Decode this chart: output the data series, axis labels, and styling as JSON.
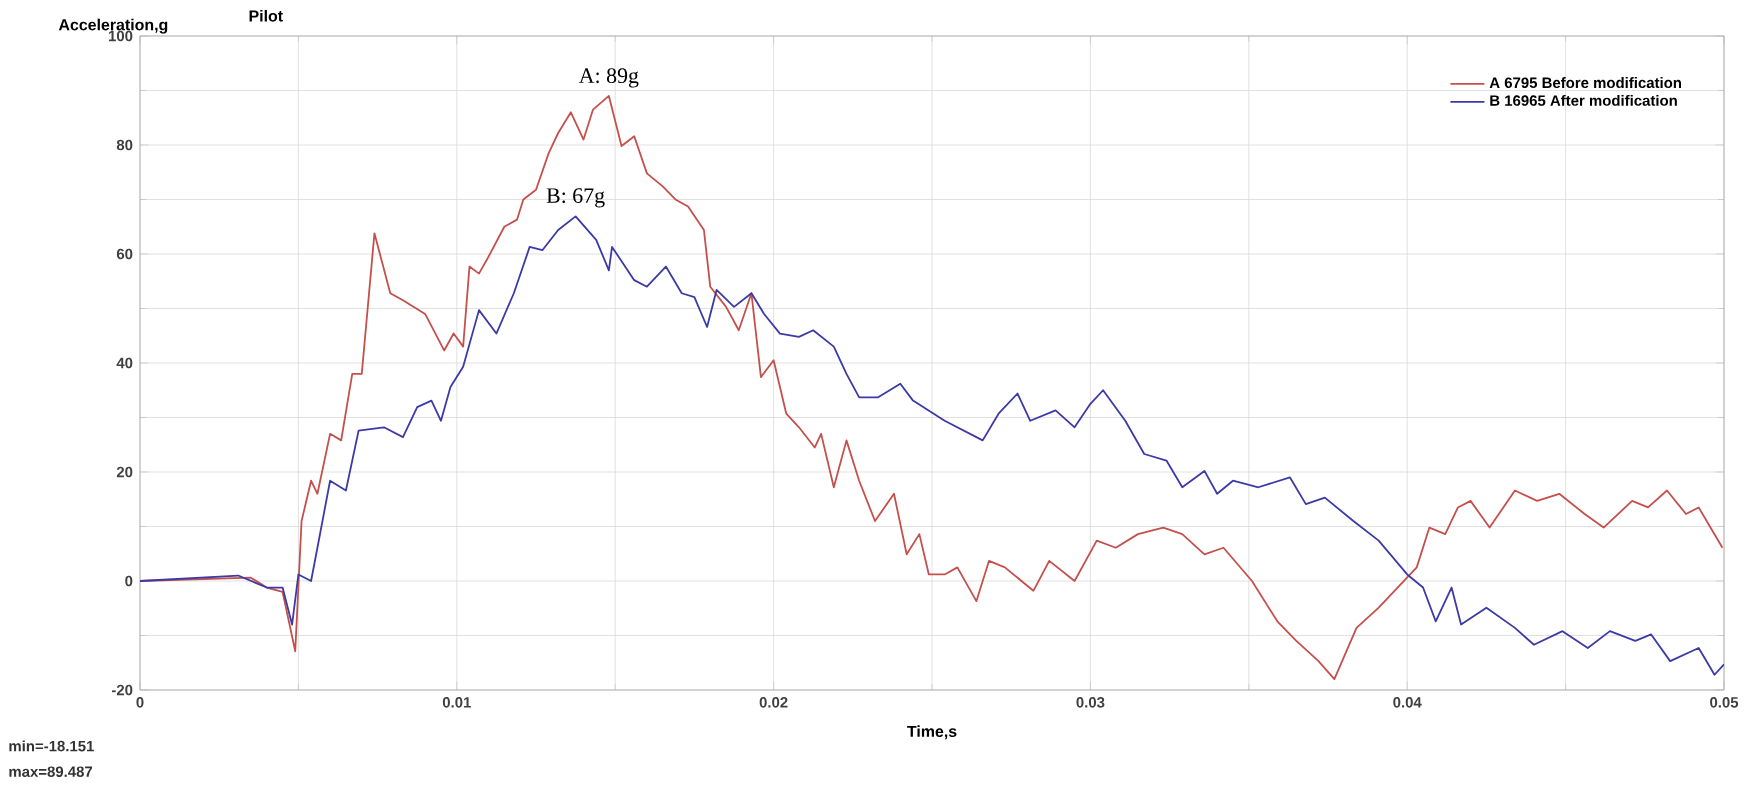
{
  "chart_data": {
    "type": "line",
    "title": "Pilot",
    "ylabel": "Acceleration,g",
    "xlabel": "Time,s",
    "xlim": [
      0,
      0.05
    ],
    "xticks": [
      0,
      0.01,
      0.02,
      0.03,
      0.04,
      0.05
    ],
    "ylim": [
      -20,
      100
    ],
    "yticks": [
      -20,
      0,
      20,
      40,
      60,
      80,
      100
    ],
    "grid": true,
    "legend": "top right",
    "marker": "none",
    "line_style": "solid",
    "annotations": [
      {
        "text": "A: 89g",
        "x": 0.0148,
        "y": 89
      },
      {
        "text": "B: 67g",
        "x": 0.01375,
        "y": 67
      },
      "min=-18.151",
      "max=89.487"
    ],
    "series": [
      {
        "name": "A 6795 Before modification",
        "color": "#c4504c",
        "x": [
          0,
          0.0035,
          0.004,
          0.0045,
          0.0049,
          0.0051,
          0.0054,
          0.0056,
          0.006,
          0.00635,
          0.0067,
          0.007,
          0.0074,
          0.0079,
          0.0083,
          0.009,
          0.0096,
          0.0099,
          0.0102,
          0.0104,
          0.0107,
          0.011,
          0.0115,
          0.0119,
          0.0121,
          0.0125,
          0.0129,
          0.0132,
          0.0136,
          0.014,
          0.0143,
          0.0148,
          0.0152,
          0.0156,
          0.016,
          0.0165,
          0.0169,
          0.0173,
          0.0178,
          0.018,
          0.0185,
          0.0189,
          0.0193,
          0.0196,
          0.02,
          0.0204,
          0.0208,
          0.0213,
          0.0215,
          0.0219,
          0.0223,
          0.0227,
          0.0232,
          0.0238,
          0.0242,
          0.0246,
          0.0249,
          0.0254,
          0.0258,
          0.0264,
          0.0268,
          0.0273,
          0.0282,
          0.0287,
          0.0295,
          0.0302,
          0.0308,
          0.0315,
          0.0323,
          0.0329,
          0.0336,
          0.0342,
          0.0351,
          0.0359,
          0.0365,
          0.0372,
          0.0377,
          0.0384,
          0.0391,
          0.0397,
          0.0403,
          0.0407,
          0.0412,
          0.0416,
          0.042,
          0.0426,
          0.0434,
          0.0441,
          0.0448,
          0.0456,
          0.0462,
          0.0471,
          0.0476,
          0.0482,
          0.0488,
          0.0492,
          0.04995
        ],
        "values": [
          0,
          0.6,
          -1.2,
          -2,
          -12.9,
          11,
          18.4,
          16,
          27,
          25.8,
          38,
          38,
          63.8,
          52.8,
          51.5,
          49,
          42.3,
          45.4,
          43,
          57.7,
          56.4,
          59.5,
          65,
          66.3,
          70,
          71.8,
          78.5,
          82.2,
          86,
          81,
          86.5,
          89,
          79.8,
          81.6,
          74.8,
          72.4,
          70,
          68.7,
          64.4,
          54,
          50.3,
          46,
          52.8,
          37.4,
          40.5,
          30.7,
          28.2,
          24.5,
          27,
          17.2,
          25.8,
          18.4,
          11,
          16,
          4.9,
          8.6,
          1.2,
          1.2,
          2.5,
          -3.7,
          3.7,
          2.5,
          -1.8,
          3.7,
          0,
          7.4,
          6.1,
          8.6,
          9.8,
          8.6,
          4.9,
          6.1,
          0,
          -7.4,
          -11,
          -14.7,
          -18,
          -8.6,
          -4.9,
          -1.2,
          2.5,
          9.8,
          8.6,
          13.5,
          14.7,
          9.8,
          16.6,
          14.7,
          16,
          12.3,
          9.8,
          14.7,
          13.5,
          16.6,
          12.3,
          13.5,
          6.1
        ]
      },
      {
        "name": "B 16965 After modification",
        "color": "#3b3aa6",
        "x": [
          0,
          0.0031,
          0.004,
          0.0045,
          0.0048,
          0.005,
          0.0054,
          0.0056,
          0.006,
          0.0065,
          0.0069,
          0.0077,
          0.0083,
          0.00875,
          0.0092,
          0.0095,
          0.0098,
          0.0102,
          0.0107,
          0.01125,
          0.0118,
          0.0123,
          0.0127,
          0.0132,
          0.01375,
          0.0144,
          0.0148,
          0.0149,
          0.0156,
          0.016,
          0.0166,
          0.0171,
          0.0175,
          0.0179,
          0.0182,
          0.01875,
          0.0193,
          0.0197,
          0.0202,
          0.0208,
          0.02125,
          0.0219,
          0.0223,
          0.0227,
          0.0233,
          0.024,
          0.0244,
          0.0254,
          0.0266,
          0.0271,
          0.0277,
          0.0281,
          0.0289,
          0.0295,
          0.03,
          0.0304,
          0.0311,
          0.0317,
          0.0324,
          0.0329,
          0.0336,
          0.034,
          0.0345,
          0.0353,
          0.0363,
          0.0368,
          0.0374,
          0.0383,
          0.0391,
          0.04,
          0.0405,
          0.0409,
          0.0414,
          0.0417,
          0.0425,
          0.0434,
          0.044,
          0.0449,
          0.0457,
          0.0464,
          0.0472,
          0.0477,
          0.0483,
          0.0492,
          0.0497,
          0.05
        ],
        "values": [
          0,
          1,
          -1.2,
          -1.2,
          -8,
          1.2,
          0,
          6.1,
          18.4,
          16.6,
          27.6,
          28.2,
          26.4,
          31.9,
          33.1,
          29.4,
          35.6,
          39.3,
          49.7,
          45.4,
          52.8,
          61.3,
          60.7,
          64.4,
          66.9,
          62.6,
          57,
          61.3,
          55.2,
          54,
          57.7,
          52.8,
          52.1,
          46.6,
          53.4,
          50.3,
          52.8,
          49,
          45.4,
          44.8,
          46,
          43,
          38,
          33.7,
          33.7,
          36.2,
          33.1,
          29.4,
          25.8,
          30.7,
          34.4,
          29.4,
          31.3,
          28.2,
          32.5,
          35,
          29.4,
          23.3,
          22.1,
          17.2,
          20.2,
          16,
          18.4,
          17.2,
          19,
          14.1,
          15.3,
          11,
          7.4,
          1.2,
          -1.2,
          -7.4,
          -1.2,
          -8,
          -4.9,
          -8.6,
          -11.7,
          -9.2,
          -12.3,
          -9.2,
          -11,
          -9.8,
          -14.7,
          -12.3,
          -17.2,
          -15.3
        ]
      }
    ]
  }
}
